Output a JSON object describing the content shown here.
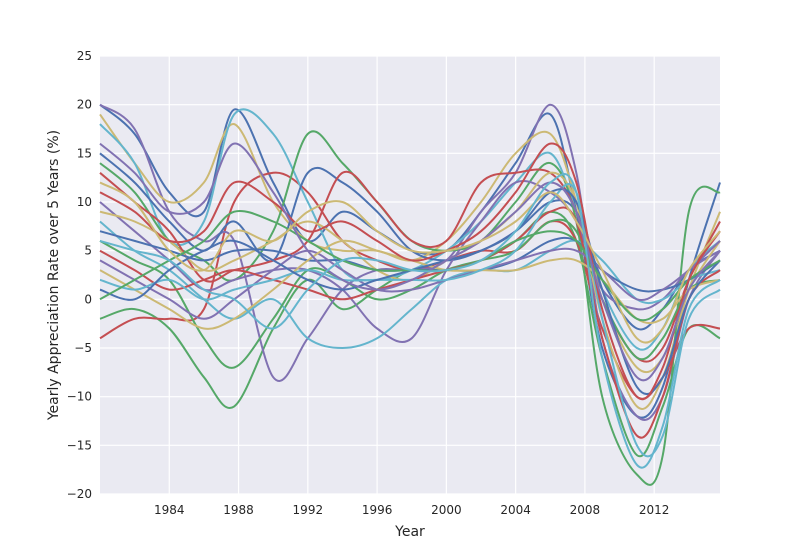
{
  "chart_data": {
    "type": "line",
    "title": "",
    "xlabel": "Year",
    "ylabel": "Yearly Appreciation Rate over 5 Years (%)",
    "xlim": [
      1980.0,
      2015.8
    ],
    "ylim": [
      -20,
      25
    ],
    "x_ticks": [
      1984,
      1988,
      1992,
      1996,
      2000,
      2004,
      2008,
      2012
    ],
    "y_ticks": [
      -20,
      -15,
      -10,
      -5,
      0,
      5,
      10,
      15,
      20,
      25
    ],
    "grid": true,
    "legend": "none",
    "background": "#EAEAF2",
    "palette": [
      "#4C72B0",
      "#55A868",
      "#C44E52",
      "#8172B2",
      "#CCB974",
      "#64B5CD"
    ],
    "x": [
      1980.0,
      1982.0,
      1984.0,
      1986.0,
      1987.75,
      1990.0,
      1992.0,
      1994.0,
      1996.0,
      1998.0,
      2000.0,
      2002.0,
      2004.0,
      2006.0,
      2007.5,
      2009.0,
      2011.0,
      2012.5,
      2014.0,
      2015.8
    ],
    "series": [
      {
        "values": [
          20.0,
          17.0,
          11.0,
          9.0,
          19.5,
          12.0,
          6.0,
          9.0,
          7.0,
          5.0,
          5.0,
          9.0,
          14.0,
          19.0,
          9.0,
          -5.0,
          -12.0,
          -9.0,
          2.0,
          12.0
        ]
      },
      {
        "values": [
          -2.0,
          -1.0,
          -3.0,
          -8.0,
          -11.0,
          -3.0,
          2.0,
          -1.0,
          1.0,
          3.0,
          3.0,
          4.0,
          6.0,
          9.0,
          6.0,
          -6.0,
          -16.0,
          -11.0,
          -3.0,
          -4.0
        ]
      },
      {
        "values": [
          -4.0,
          -2.0,
          -2.0,
          -1.0,
          10.0,
          13.0,
          11.0,
          6.0,
          4.0,
          3.0,
          4.0,
          5.0,
          5.0,
          8.0,
          6.0,
          -3.0,
          -10.0,
          -8.0,
          -3.0,
          -3.0
        ]
      },
      {
        "values": [
          20.0,
          17.5,
          9.0,
          6.0,
          6.0,
          -8.0,
          -4.0,
          1.0,
          3.0,
          3.0,
          4.0,
          9.0,
          13.0,
          20.0,
          13.0,
          -4.0,
          -12.0,
          -10.0,
          0.0,
          5.0
        ]
      },
      {
        "values": [
          19.0,
          14.0,
          10.0,
          12.0,
          18.0,
          10.0,
          6.0,
          5.0,
          5.0,
          4.0,
          6.0,
          10.0,
          15.0,
          17.0,
          10.0,
          -2.0,
          -11.0,
          -8.0,
          1.0,
          9.0
        ]
      },
      {
        "values": [
          18.0,
          14.0,
          6.0,
          8.0,
          19.0,
          17.0,
          10.0,
          3.0,
          2.0,
          3.0,
          5.0,
          8.0,
          12.0,
          15.0,
          9.0,
          1.0,
          -5.0,
          -3.0,
          3.0,
          6.0
        ]
      },
      {
        "values": [
          15.0,
          12.0,
          8.0,
          5.0,
          8.0,
          4.0,
          13.0,
          12.0,
          9.0,
          5.0,
          4.0,
          5.0,
          7.0,
          10.0,
          9.0,
          2.0,
          -3.0,
          -1.0,
          3.0,
          5.0
        ]
      },
      {
        "values": [
          14.0,
          11.0,
          6.0,
          4.0,
          2.0,
          7.0,
          17.0,
          14.0,
          10.0,
          6.0,
          5.0,
          6.0,
          10.0,
          14.0,
          8.0,
          -10.0,
          -18.0,
          -16.0,
          9.0,
          11.0
        ]
      },
      {
        "values": [
          13.0,
          10.0,
          7.0,
          2.0,
          3.0,
          4.0,
          6.0,
          13.0,
          10.0,
          6.0,
          6.0,
          12.0,
          13.0,
          13.0,
          9.0,
          0.0,
          -6.0,
          -5.0,
          2.0,
          8.0
        ]
      },
      {
        "values": [
          10.0,
          7.0,
          4.0,
          1.0,
          2.0,
          3.0,
          3.0,
          1.0,
          -3.0,
          -4.0,
          3.0,
          8.0,
          12.0,
          11.0,
          8.0,
          1.0,
          -1.0,
          0.0,
          3.0,
          5.0
        ]
      },
      {
        "values": [
          9.0,
          8.0,
          6.0,
          3.0,
          4.0,
          6.0,
          8.0,
          6.0,
          3.0,
          2.0,
          4.0,
          6.0,
          9.0,
          13.0,
          10.0,
          0.0,
          -7.0,
          -6.0,
          1.0,
          6.0
        ]
      },
      {
        "values": [
          8.0,
          5.0,
          3.0,
          0.0,
          -2.0,
          0.0,
          -4.0,
          -5.0,
          -4.0,
          -1.0,
          2.0,
          3.0,
          3.0,
          5.0,
          6.0,
          4.0,
          0.0,
          0.0,
          2.0,
          3.0
        ]
      },
      {
        "values": [
          7.0,
          6.0,
          5.0,
          4.0,
          5.0,
          5.0,
          4.0,
          4.0,
          3.0,
          3.0,
          3.0,
          3.0,
          4.0,
          6.0,
          6.0,
          3.0,
          1.0,
          1.0,
          2.0,
          4.0
        ]
      },
      {
        "values": [
          6.0,
          4.0,
          2.0,
          -4.0,
          -7.0,
          -2.0,
          3.0,
          2.0,
          0.0,
          1.0,
          3.0,
          4.0,
          5.0,
          8.0,
          7.0,
          0.0,
          -6.0,
          -4.0,
          1.0,
          2.0
        ]
      },
      {
        "values": [
          5.0,
          3.0,
          1.0,
          2.0,
          3.0,
          2.0,
          1.0,
          0.0,
          1.0,
          2.0,
          3.0,
          4.0,
          6.0,
          9.0,
          8.0,
          -4.0,
          -14.0,
          -10.0,
          0.0,
          3.0
        ]
      },
      {
        "values": [
          4.0,
          2.0,
          0.0,
          -2.0,
          0.0,
          3.0,
          5.0,
          3.0,
          1.0,
          1.0,
          2.0,
          3.0,
          4.0,
          5.0,
          5.0,
          3.0,
          0.0,
          1.0,
          3.0,
          6.0
        ]
      },
      {
        "values": [
          3.0,
          1.0,
          -1.0,
          -3.0,
          -2.0,
          1.0,
          4.0,
          6.0,
          5.0,
          4.0,
          3.0,
          3.0,
          3.0,
          4.0,
          4.0,
          2.0,
          -2.0,
          -2.0,
          1.0,
          2.0
        ]
      },
      {
        "values": [
          2.0,
          1.0,
          2.0,
          0.0,
          1.0,
          2.0,
          3.0,
          2.0,
          2.0,
          2.0,
          2.0,
          3.0,
          5.0,
          10.0,
          11.0,
          -2.0,
          -15.0,
          -14.0,
          -2.0,
          1.0
        ]
      },
      {
        "values": [
          1.0,
          0.0,
          3.0,
          5.0,
          6.0,
          4.0,
          2.0,
          1.0,
          2.0,
          3.0,
          4.0,
          5.0,
          7.0,
          11.0,
          10.0,
          1.0,
          -9.0,
          -8.0,
          0.0,
          4.0
        ]
      },
      {
        "values": [
          0.0,
          2.0,
          4.0,
          6.0,
          9.0,
          8.0,
          6.0,
          4.0,
          3.0,
          3.0,
          3.0,
          4.0,
          6.0,
          7.0,
          6.0,
          2.0,
          -2.0,
          -1.0,
          2.0,
          4.0
        ]
      },
      {
        "values": [
          11.0,
          9.0,
          6.0,
          7.0,
          12.0,
          10.0,
          7.0,
          8.0,
          6.0,
          4.0,
          5.0,
          7.0,
          11.0,
          16.0,
          12.0,
          -1.0,
          -10.0,
          -7.0,
          2.0,
          7.0
        ]
      },
      {
        "values": [
          16.0,
          13.0,
          9.0,
          10.0,
          16.0,
          11.0,
          5.0,
          2.0,
          1.0,
          2.0,
          4.0,
          6.0,
          9.0,
          12.0,
          9.0,
          0.0,
          -8.0,
          -6.0,
          1.0,
          5.0
        ]
      },
      {
        "values": [
          12.0,
          10.0,
          5.0,
          3.0,
          7.0,
          6.0,
          9.0,
          10.0,
          7.0,
          5.0,
          5.0,
          6.0,
          8.0,
          11.0,
          8.0,
          3.0,
          -4.0,
          -3.0,
          3.0,
          7.0
        ]
      },
      {
        "values": [
          6.0,
          5.0,
          4.0,
          1.0,
          0.0,
          -3.0,
          1.0,
          4.0,
          4.0,
          3.0,
          3.0,
          4.0,
          7.0,
          12.0,
          11.0,
          -6.0,
          -17.0,
          -13.0,
          -1.0,
          2.0
        ]
      }
    ]
  }
}
